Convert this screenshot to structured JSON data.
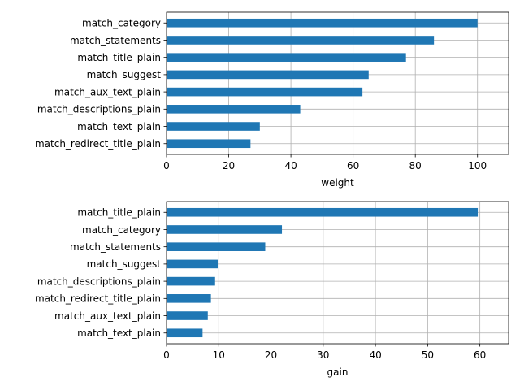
{
  "chart_data": [
    {
      "type": "bar",
      "orientation": "horizontal",
      "categories": [
        "match_category",
        "match_statements",
        "match_title_plain",
        "match_suggest",
        "match_aux_text_plain",
        "match_descriptions_plain",
        "match_text_plain",
        "match_redirect_title_plain"
      ],
      "values": [
        100,
        86,
        77,
        65,
        63,
        43,
        30,
        27
      ],
      "xlabel": "weight",
      "ylabel": "",
      "xlim": [
        0,
        110
      ],
      "xticks": [
        0,
        20,
        40,
        60,
        80,
        100
      ],
      "grid": true,
      "bar_color": "#1f77b4"
    },
    {
      "type": "bar",
      "orientation": "horizontal",
      "categories": [
        "match_title_plain",
        "match_category",
        "match_statements",
        "match_suggest",
        "match_descriptions_plain",
        "match_redirect_title_plain",
        "match_aux_text_plain",
        "match_text_plain"
      ],
      "values": [
        59.6,
        22.1,
        18.9,
        9.8,
        9.3,
        8.5,
        7.9,
        6.9
      ],
      "xlabel": "gain",
      "ylabel": "",
      "xlim": [
        0,
        65.5
      ],
      "xticks": [
        0,
        10,
        20,
        30,
        40,
        50,
        60
      ],
      "grid": true,
      "bar_color": "#1f77b4"
    }
  ]
}
